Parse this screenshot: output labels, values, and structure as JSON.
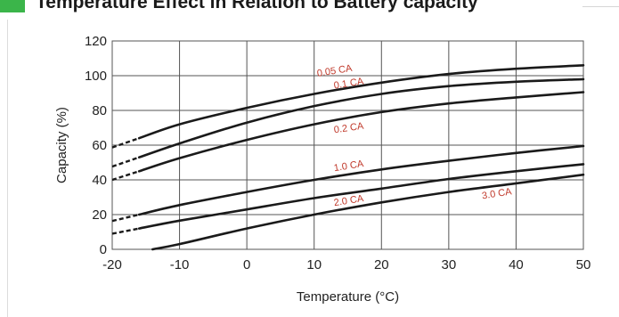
{
  "header": {
    "title": "Temperature Effect in Relation to Battery capacity",
    "marker_color": "#3bb54a"
  },
  "chart_data": {
    "type": "line",
    "title": "",
    "xlabel": "Temperature (°C)",
    "ylabel": "Capacity (%)",
    "xlim": [
      -20,
      50
    ],
    "ylim": [
      0,
      120
    ],
    "xticks": [
      -20,
      -10,
      0,
      10,
      20,
      30,
      40,
      50
    ],
    "yticks": [
      0,
      20,
      40,
      60,
      80,
      100,
      120
    ],
    "grid": true,
    "legend": "none",
    "line_color": "#1a1a1a",
    "label_color": "#c0392b",
    "series": [
      {
        "name": "0.05 CA",
        "dashed_x": [
          -20,
          -16
        ],
        "x": [
          -16,
          -10,
          0,
          10,
          20,
          30,
          40,
          50
        ],
        "y": [
          64,
          72,
          81.5,
          89.5,
          96,
          101,
          104,
          106
        ]
      },
      {
        "name": "0.1 CA",
        "dashed_x": [
          -20,
          -16
        ],
        "x": [
          -16,
          -10,
          0,
          10,
          20,
          30,
          40,
          50
        ],
        "y": [
          53,
          61,
          73,
          82.5,
          89.5,
          94,
          96.5,
          98
        ]
      },
      {
        "name": "0.2 CA",
        "dashed_x": [
          -20,
          -16
        ],
        "x": [
          -16,
          -10,
          0,
          10,
          20,
          30,
          40,
          50
        ],
        "y": [
          45,
          52.5,
          63,
          72,
          79,
          84,
          87.5,
          90.5
        ]
      },
      {
        "name": "1.0 CA",
        "dashed_x": [
          -20,
          -16
        ],
        "x": [
          -16,
          -10,
          0,
          10,
          20,
          30,
          40,
          50
        ],
        "y": [
          20,
          25.5,
          33,
          40,
          46,
          51,
          55.5,
          59.5
        ]
      },
      {
        "name": "2.0 CA",
        "dashed_x": [
          -20,
          -16
        ],
        "x": [
          -16,
          -10,
          0,
          10,
          20,
          30,
          40,
          50
        ],
        "y": [
          12,
          16.5,
          23,
          29.5,
          35,
          40.5,
          45,
          49
        ]
      },
      {
        "name": "3.0 CA",
        "dashed_x": [],
        "x": [
          -14,
          -10,
          0,
          10,
          20,
          30,
          40,
          50
        ],
        "y": [
          0,
          3,
          12,
          20,
          27,
          33,
          38,
          43
        ]
      }
    ],
    "annotations": [
      {
        "text": "0.05 CA",
        "x": 10.5,
        "y": 99.5,
        "rotate": -9
      },
      {
        "text": "0.1 CA",
        "x": 13,
        "y": 92.5,
        "rotate": -9
      },
      {
        "text": "0.2 CA",
        "x": 13,
        "y": 67,
        "rotate": -8
      },
      {
        "text": "1.0 CA",
        "x": 13,
        "y": 45,
        "rotate": -9
      },
      {
        "text": "2.0 CA",
        "x": 13,
        "y": 25,
        "rotate": -9
      },
      {
        "text": "3.0 CA",
        "x": 35,
        "y": 29,
        "rotate": -9
      }
    ]
  }
}
